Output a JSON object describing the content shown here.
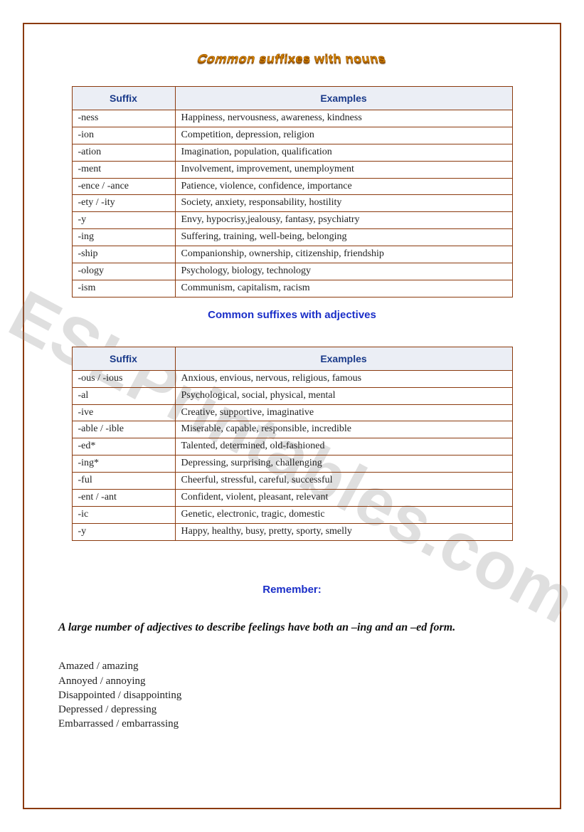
{
  "watermark": "ESLPrintables.com",
  "wordart_title": "Common suffixes with nouns",
  "table_headers": {
    "suffix": "Suffix",
    "examples": "Examples"
  },
  "noun_table": {
    "columns": [
      "Suffix",
      "Examples"
    ],
    "col_widths": [
      "128px",
      "auto"
    ],
    "border_color": "#8b3a0e",
    "header_bg": "#ebeef5",
    "header_color": "#1a3a8a",
    "rows": [
      {
        "suffix": "-ness",
        "examples": "Happiness, nervousness, awareness, kindness"
      },
      {
        "suffix": "-ion",
        "examples": "Competition, depression, religion"
      },
      {
        "suffix": "-ation",
        "examples": "Imagination, population, qualification"
      },
      {
        "suffix": "-ment",
        "examples": "Involvement, improvement, unemployment"
      },
      {
        "suffix": "-ence / -ance",
        "examples": "Patience, violence, confidence, importance"
      },
      {
        "suffix": "-ety / -ity",
        "examples": "Society, anxiety, responsability, hostility"
      },
      {
        "suffix": "-y",
        "examples": "Envy, hypocrisy,jealousy, fantasy, psychiatry"
      },
      {
        "suffix": "-ing",
        "examples": "Suffering, training, well-being, belonging"
      },
      {
        "suffix": "-ship",
        "examples": "Companionship, ownership, citizenship, friendship"
      },
      {
        "suffix": "-ology",
        "examples": "Psychology, biology, technology"
      },
      {
        "suffix": "-ism",
        "examples": "Communism, capitalism, racism"
      }
    ]
  },
  "mid_heading": "Common suffixes with adjectives",
  "adj_table": {
    "columns": [
      "Suffix",
      "Examples"
    ],
    "col_widths": [
      "128px",
      "auto"
    ],
    "border_color": "#8b3a0e",
    "header_bg": "#ebeef5",
    "header_color": "#1a3a8a",
    "rows": [
      {
        "suffix": "-ous / -ious",
        "examples": "Anxious, envious, nervous, religious, famous"
      },
      {
        "suffix": "-al",
        "examples": "Psychological, social, physical, mental"
      },
      {
        "suffix": "-ive",
        "examples": "Creative, supportive, imaginative"
      },
      {
        "suffix": "-able / -ible",
        "examples": "Miserable, capable, responsible, incredible"
      },
      {
        "suffix": "-ed*",
        "examples": "Talented, determined, old-fashioned"
      },
      {
        "suffix": "-ing*",
        "examples": "Depressing, surprising, challenging"
      },
      {
        "suffix": "-ful",
        "examples": "Cheerful, stressful, careful, successful"
      },
      {
        "suffix": "-ent / -ant",
        "examples": "Confident, violent, pleasant, relevant"
      },
      {
        "suffix": "-ic",
        "examples": "Genetic, electronic, tragic, domestic"
      },
      {
        "suffix": "-y",
        "examples": "Happy, healthy, busy, pretty, sporty, smelly"
      }
    ]
  },
  "remember_heading": "Remember:",
  "intro_text": "A large number of adjectives to describe feelings have both an –ing and an –ed form.",
  "pairs": [
    "Amazed / amazing",
    "Annoyed / annoying",
    "Disappointed / disappointing",
    "Depressed / depressing",
    "Embarrassed / embarrassing"
  ],
  "colors": {
    "page_border": "#8b3a0e",
    "heading_blue": "#1a2ec8",
    "header_text": "#1a3a8a",
    "wordart_fill": "#d98900"
  }
}
